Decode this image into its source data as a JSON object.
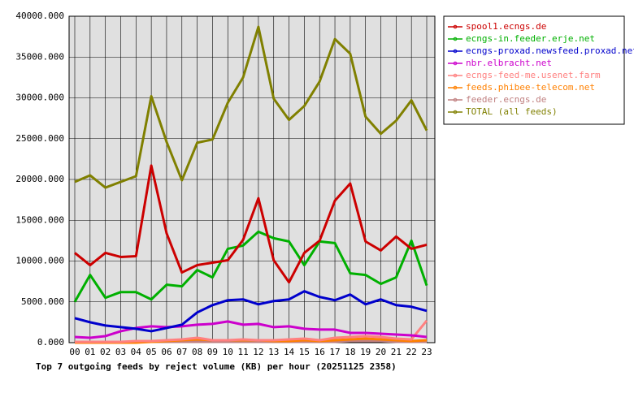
{
  "chart_data": {
    "type": "line",
    "title": "Top 7 outgoing feeds by reject volume (KB) per hour (20251125 2358)",
    "categories": [
      "00",
      "01",
      "02",
      "03",
      "04",
      "05",
      "06",
      "07",
      "08",
      "09",
      "10",
      "11",
      "12",
      "13",
      "14",
      "15",
      "16",
      "17",
      "18",
      "19",
      "20",
      "21",
      "22",
      "23"
    ],
    "series": [
      {
        "name": "spool1.ecngs.de",
        "color": "#cc0000",
        "values": [
          11000,
          9500,
          11000,
          10500,
          10600,
          21700,
          13400,
          8600,
          9500,
          9800,
          10100,
          12600,
          17700,
          10100,
          7400,
          11000,
          12500,
          17400,
          19500,
          12400,
          11300,
          13000,
          11500,
          12000
        ]
      },
      {
        "name": "ecngs-in.feeder.erje.net",
        "color": "#00b000",
        "values": [
          5000,
          8300,
          5500,
          6200,
          6200,
          5300,
          7100,
          6900,
          8900,
          8000,
          11500,
          11900,
          13600,
          12800,
          12400,
          9500,
          12400,
          12200,
          8500,
          8300,
          7200,
          8000,
          12500,
          7000
        ]
      },
      {
        "name": "ecngs-proxad.newsfeed.proxad.net",
        "color": "#0000cc",
        "values": [
          3000,
          2500,
          2100,
          1900,
          1700,
          1400,
          1800,
          2200,
          3700,
          4600,
          5200,
          5300,
          4700,
          5100,
          5300,
          6300,
          5600,
          5200,
          5900,
          4700,
          5300,
          4600,
          4400,
          3900
        ]
      },
      {
        "name": "nbr.elbracht.net",
        "color": "#cc00cc",
        "values": [
          700,
          600,
          800,
          1400,
          1800,
          2000,
          1900,
          2000,
          2200,
          2300,
          2600,
          2200,
          2300,
          1900,
          2000,
          1700,
          1600,
          1600,
          1200,
          1200,
          1100,
          1000,
          900,
          700
        ]
      },
      {
        "name": "ecngs-feed-me.usenet.farm",
        "color": "#ff8080",
        "values": [
          100,
          100,
          100,
          100,
          200,
          200,
          300,
          400,
          600,
          300,
          300,
          400,
          300,
          300,
          400,
          500,
          300,
          600,
          700,
          800,
          700,
          500,
          400,
          2700
        ]
      },
      {
        "name": "feeds.phibee-telecom.net",
        "color": "#ff8000",
        "values": [
          0,
          0,
          0,
          0,
          0,
          100,
          200,
          300,
          400,
          300,
          300,
          300,
          300,
          200,
          200,
          300,
          200,
          300,
          400,
          500,
          400,
          300,
          200,
          300
        ]
      },
      {
        "name": "feeder.ecngs.de",
        "color": "#c08080",
        "values": [
          100,
          100,
          100,
          100,
          100,
          100,
          100,
          100,
          100,
          100,
          100,
          100,
          100,
          100,
          100,
          100,
          100,
          100,
          200,
          200,
          200,
          100,
          100,
          100
        ]
      },
      {
        "name": "TOTAL (all feeds)",
        "color": "#808000",
        "values": [
          19700,
          20500,
          19000,
          19700,
          20400,
          30200,
          24600,
          19900,
          24500,
          24900,
          29400,
          32500,
          38700,
          29900,
          27300,
          29000,
          32000,
          37200,
          35400,
          27700,
          25600,
          27200,
          29700,
          26000
        ]
      }
    ],
    "ylim": [
      0,
      40000
    ],
    "yticks": [
      {
        "value": 0,
        "label": "0.000"
      },
      {
        "value": 5000,
        "label": "5000.000"
      },
      {
        "value": 10000,
        "label": "10000.000"
      },
      {
        "value": 15000,
        "label": "15000.000"
      },
      {
        "value": 20000,
        "label": "20000.000"
      },
      {
        "value": 25000,
        "label": "25000.000"
      },
      {
        "value": 30000,
        "label": "30000.000"
      },
      {
        "value": 35000,
        "label": "35000.000"
      },
      {
        "value": 40000,
        "label": "40000.000"
      }
    ],
    "grid": true,
    "legend": "right"
  }
}
